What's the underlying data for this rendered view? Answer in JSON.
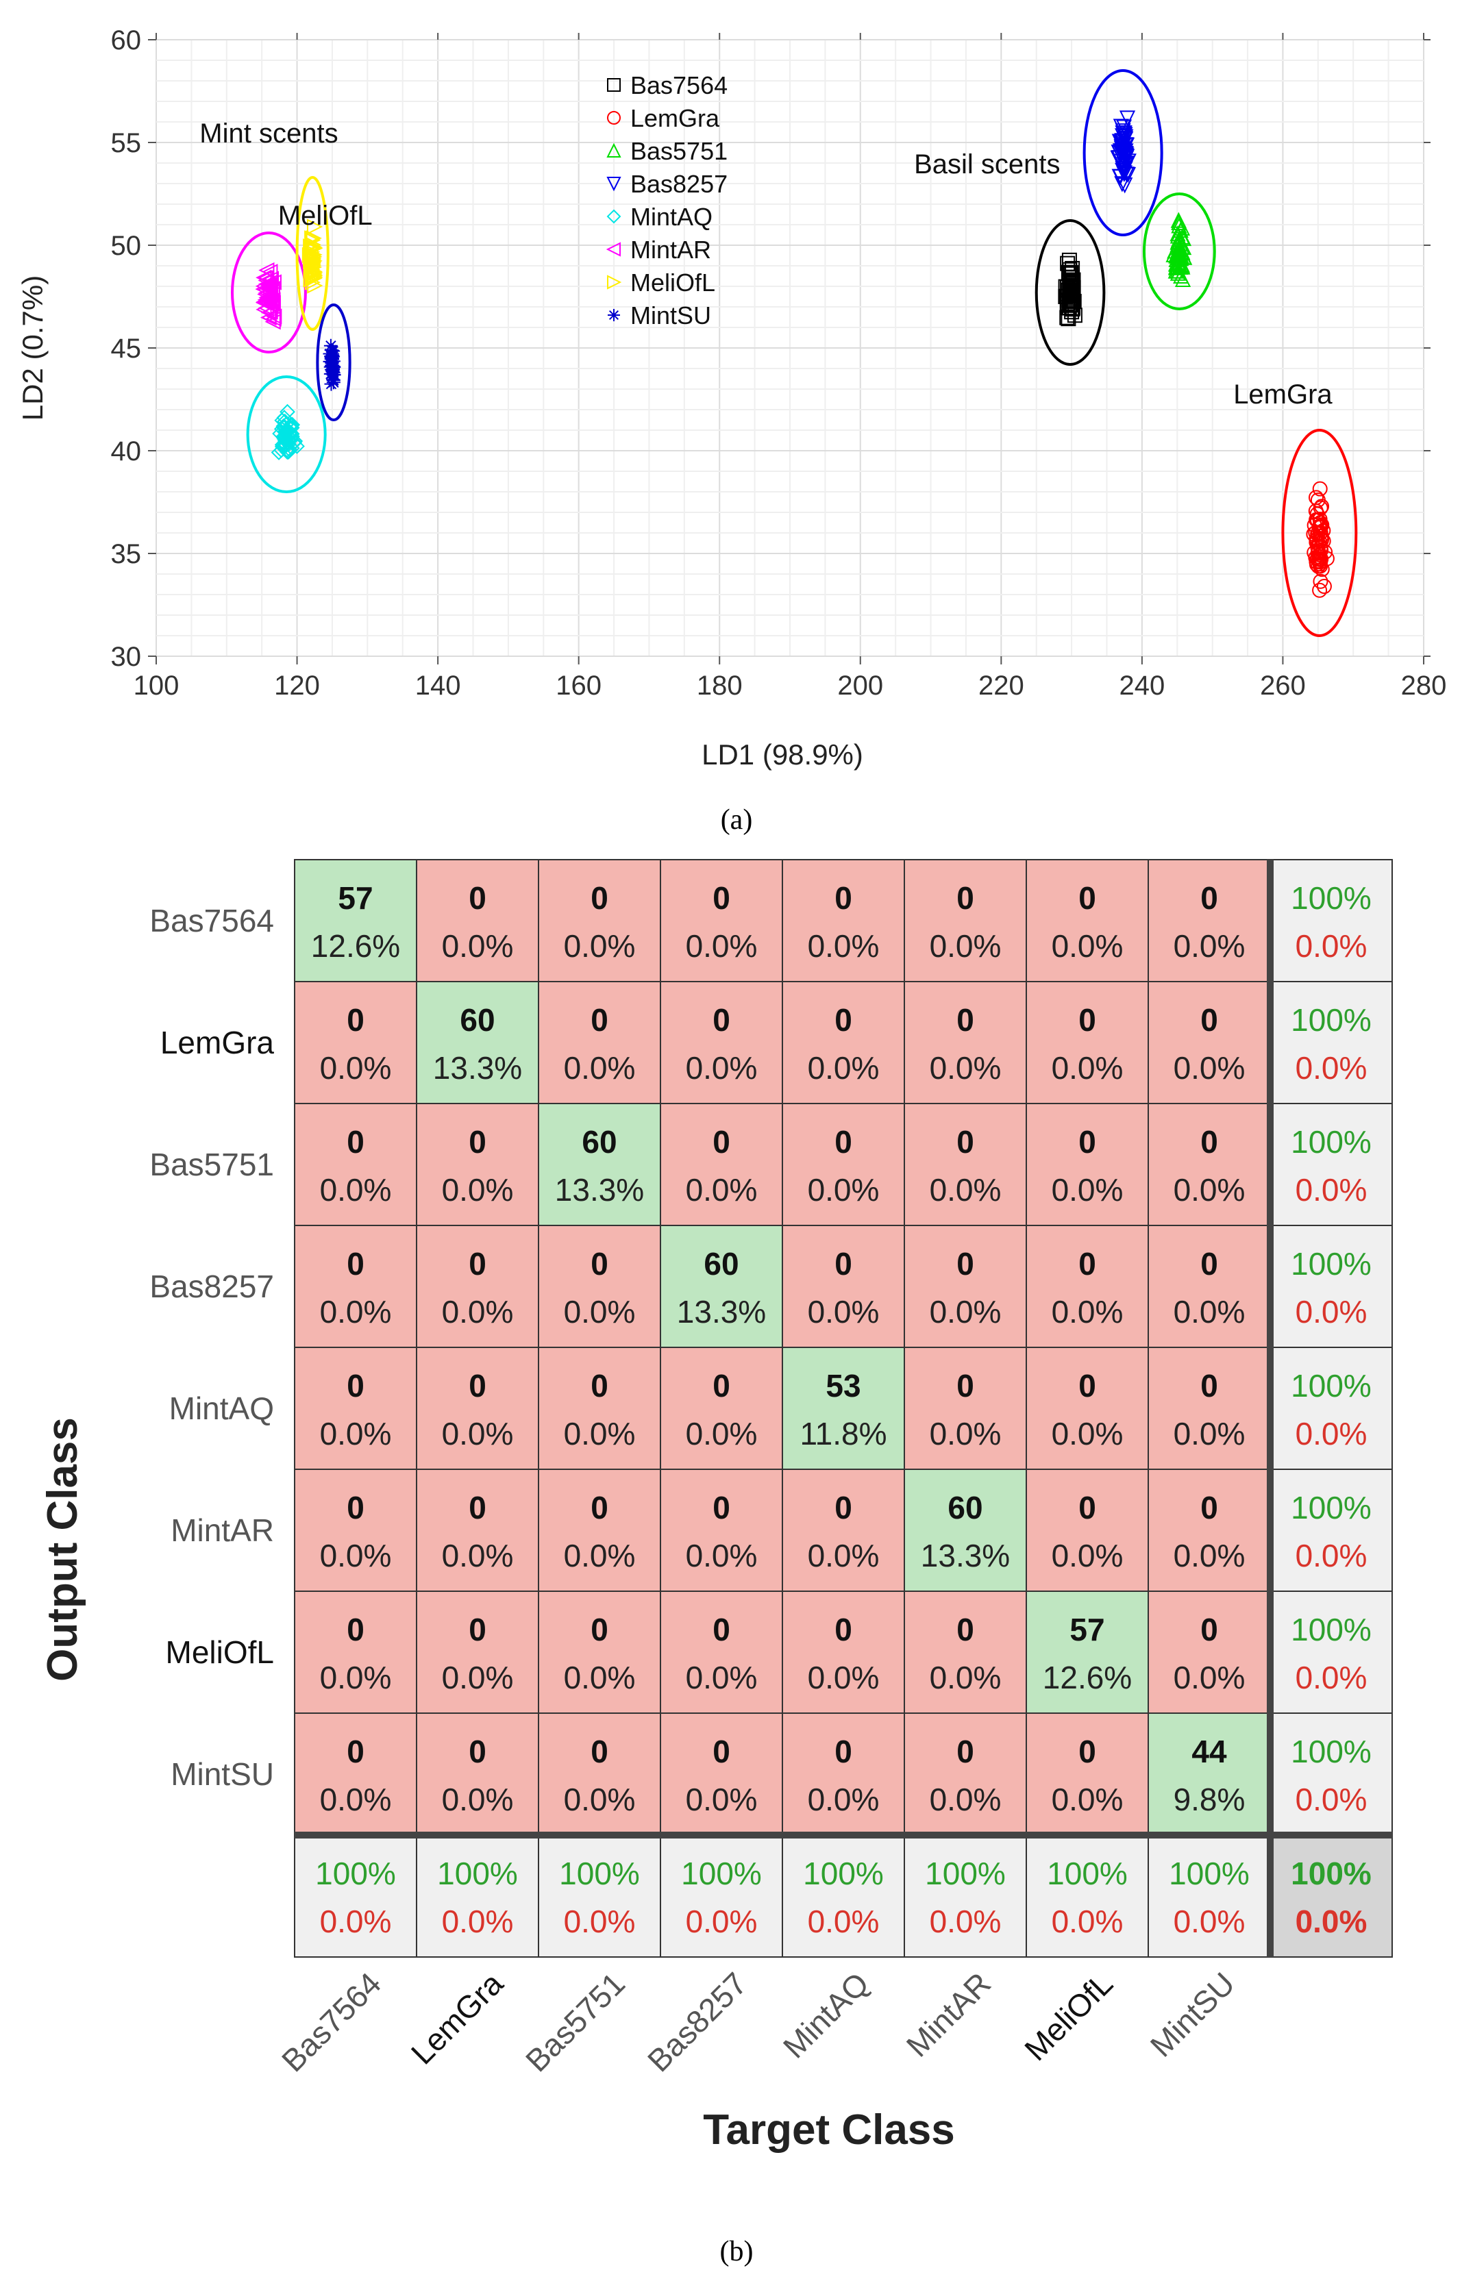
{
  "captions": {
    "a": "(a)",
    "b": "(b)"
  },
  "chart_data": [
    {
      "type": "scatter",
      "xlabel": "LD1 (98.9%)",
      "ylabel": "LD2 (0.7%)",
      "xlim": [
        100,
        280
      ],
      "ylim": [
        30,
        60
      ],
      "xticks": [
        100,
        120,
        140,
        160,
        180,
        200,
        220,
        240,
        260,
        280
      ],
      "yticks": [
        30,
        35,
        40,
        45,
        50,
        55,
        60
      ],
      "grid": true,
      "legend_position": "top-center",
      "annotations": [
        {
          "text": "Mint scents",
          "x": 116,
          "y": 55
        },
        {
          "text": "MeliOfL",
          "x": 124,
          "y": 51
        },
        {
          "text": "Basil scents",
          "x": 218,
          "y": 53.5
        },
        {
          "text": "LemGra",
          "x": 260,
          "y": 42.3
        }
      ],
      "series": [
        {
          "name": "Bas7564",
          "marker": "square",
          "color": "#000000",
          "center": [
            229.8,
            47.7
          ],
          "spread": [
            1.0,
            2.0
          ],
          "count": 57
        },
        {
          "name": "LemGra",
          "marker": "circle",
          "color": "#ff0000",
          "center": [
            265.2,
            35.7
          ],
          "spread": [
            1.2,
            3.0
          ],
          "count": 60
        },
        {
          "name": "Bas5751",
          "marker": "triangle-up",
          "color": "#00dd00",
          "center": [
            245.3,
            49.6
          ],
          "spread": [
            1.2,
            1.8
          ],
          "count": 60
        },
        {
          "name": "Bas8257",
          "marker": "triangle-down",
          "color": "#0000ee",
          "center": [
            237.3,
            54.3
          ],
          "spread": [
            1.2,
            2.4
          ],
          "count": 60
        },
        {
          "name": "MintAQ",
          "marker": "diamond",
          "color": "#00e5e5",
          "center": [
            118.5,
            40.8
          ],
          "spread": [
            1.8,
            1.4
          ],
          "count": 53
        },
        {
          "name": "MintAR",
          "marker": "triangle-left",
          "color": "#ff00ff",
          "center": [
            116.0,
            47.6
          ],
          "spread": [
            1.2,
            1.6
          ],
          "count": 60
        },
        {
          "name": "MeliOfL",
          "marker": "triangle-right",
          "color": "#ffee00",
          "center": [
            122.2,
            49.4
          ],
          "spread": [
            0.6,
            1.8
          ],
          "count": 57
        },
        {
          "name": "MintSU",
          "marker": "asterisk",
          "color": "#0000cc",
          "center": [
            125.0,
            44.2
          ],
          "spread": [
            0.6,
            1.2
          ],
          "count": 44
        }
      ],
      "ellipses": [
        {
          "series": "Bas7564",
          "cx": 229.8,
          "cy": 47.7,
          "rx": 4.8,
          "ry": 3.5
        },
        {
          "series": "LemGra",
          "cx": 265.2,
          "cy": 36.0,
          "rx": 5.2,
          "ry": 5.0
        },
        {
          "series": "Bas5751",
          "cx": 245.3,
          "cy": 49.7,
          "rx": 5.0,
          "ry": 2.8
        },
        {
          "series": "Bas8257",
          "cx": 237.3,
          "cy": 54.5,
          "rx": 5.5,
          "ry": 4.0
        },
        {
          "series": "MintAQ",
          "cx": 118.5,
          "cy": 40.8,
          "rx": 5.5,
          "ry": 2.8
        },
        {
          "series": "MintAR",
          "cx": 116.0,
          "cy": 47.7,
          "rx": 5.2,
          "ry": 2.9
        },
        {
          "series": "MeliOfL",
          "cx": 122.2,
          "cy": 49.6,
          "rx": 2.2,
          "ry": 3.7
        },
        {
          "series": "MintSU",
          "cx": 125.2,
          "cy": 44.3,
          "rx": 2.3,
          "ry": 2.8
        }
      ]
    },
    {
      "type": "heatmap",
      "xlabel": "Target Class",
      "ylabel": "Output Class",
      "classes": [
        "Bas7564",
        "LemGra",
        "Bas5751",
        "Bas8257",
        "MintAQ",
        "MintAR",
        "MeliOfL",
        "MintSU"
      ],
      "bold_classes": [
        "LemGra",
        "MeliOfL"
      ],
      "counts": [
        [
          57,
          0,
          0,
          0,
          0,
          0,
          0,
          0
        ],
        [
          0,
          60,
          0,
          0,
          0,
          0,
          0,
          0
        ],
        [
          0,
          0,
          60,
          0,
          0,
          0,
          0,
          0
        ],
        [
          0,
          0,
          0,
          60,
          0,
          0,
          0,
          0
        ],
        [
          0,
          0,
          0,
          0,
          53,
          0,
          0,
          0
        ],
        [
          0,
          0,
          0,
          0,
          0,
          60,
          0,
          0
        ],
        [
          0,
          0,
          0,
          0,
          0,
          0,
          57,
          0
        ],
        [
          0,
          0,
          0,
          0,
          0,
          0,
          0,
          44
        ]
      ],
      "percents": [
        [
          "12.6%",
          "0.0%",
          "0.0%",
          "0.0%",
          "0.0%",
          "0.0%",
          "0.0%",
          "0.0%"
        ],
        [
          "0.0%",
          "13.3%",
          "0.0%",
          "0.0%",
          "0.0%",
          "0.0%",
          "0.0%",
          "0.0%"
        ],
        [
          "0.0%",
          "0.0%",
          "13.3%",
          "0.0%",
          "0.0%",
          "0.0%",
          "0.0%",
          "0.0%"
        ],
        [
          "0.0%",
          "0.0%",
          "0.0%",
          "13.3%",
          "0.0%",
          "0.0%",
          "0.0%",
          "0.0%"
        ],
        [
          "0.0%",
          "0.0%",
          "0.0%",
          "0.0%",
          "11.8%",
          "0.0%",
          "0.0%",
          "0.0%"
        ],
        [
          "0.0%",
          "0.0%",
          "0.0%",
          "0.0%",
          "0.0%",
          "13.3%",
          "0.0%",
          "0.0%"
        ],
        [
          "0.0%",
          "0.0%",
          "0.0%",
          "0.0%",
          "0.0%",
          "0.0%",
          "12.6%",
          "0.0%"
        ],
        [
          "0.0%",
          "0.0%",
          "0.0%",
          "0.0%",
          "0.0%",
          "0.0%",
          "0.0%",
          "9.8%"
        ]
      ],
      "row_summary": [
        [
          "100%",
          "0.0%"
        ],
        [
          "100%",
          "0.0%"
        ],
        [
          "100%",
          "0.0%"
        ],
        [
          "100%",
          "0.0%"
        ],
        [
          "100%",
          "0.0%"
        ],
        [
          "100%",
          "0.0%"
        ],
        [
          "100%",
          "0.0%"
        ],
        [
          "100%",
          "0.0%"
        ]
      ],
      "col_summary": [
        [
          "100%",
          "0.0%"
        ],
        [
          "100%",
          "0.0%"
        ],
        [
          "100%",
          "0.0%"
        ],
        [
          "100%",
          "0.0%"
        ],
        [
          "100%",
          "0.0%"
        ],
        [
          "100%",
          "0.0%"
        ],
        [
          "100%",
          "0.0%"
        ],
        [
          "100%",
          "0.0%"
        ]
      ],
      "overall": [
        "100%",
        "0.0%"
      ],
      "colors": {
        "correct": "#bfe6c1",
        "incorrect": "#f4b6b0",
        "summary": "#f0f0f0",
        "overall": "#d5d5d5",
        "accuracy_text": "#2ea02e",
        "error_text": "#d9342b"
      }
    }
  ]
}
